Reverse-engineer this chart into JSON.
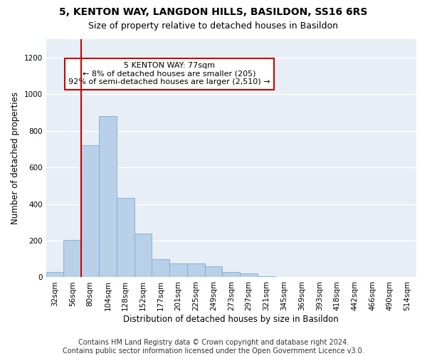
{
  "title_line1": "5, KENTON WAY, LANGDON HILLS, BASILDON, SS16 6RS",
  "title_line2": "Size of property relative to detached houses in Basildon",
  "xlabel": "Distribution of detached houses by size in Basildon",
  "ylabel": "Number of detached properties",
  "footnote": "Contains HM Land Registry data © Crown copyright and database right 2024.\nContains public sector information licensed under the Open Government Licence v3.0.",
  "bar_labels": [
    "32sqm",
    "56sqm",
    "80sqm",
    "104sqm",
    "128sqm",
    "152sqm",
    "177sqm",
    "201sqm",
    "225sqm",
    "249sqm",
    "273sqm",
    "297sqm",
    "321sqm",
    "345sqm",
    "369sqm",
    "393sqm",
    "418sqm",
    "442sqm",
    "466sqm",
    "490sqm",
    "514sqm"
  ],
  "bar_values": [
    30,
    205,
    720,
    880,
    435,
    240,
    100,
    75,
    75,
    60,
    30,
    20,
    5,
    0,
    0,
    0,
    0,
    0,
    0,
    0,
    0
  ],
  "bar_color": "#b8d0e8",
  "bar_edge_color": "#7aaed4",
  "vline_color": "#cc0000",
  "annotation_text": "5 KENTON WAY: 77sqm\n← 8% of detached houses are smaller (205)\n92% of semi-detached houses are larger (2,510) →",
  "annotation_box_color": "#ffffff",
  "annotation_box_edge": "#cc0000",
  "ylim": [
    0,
    1300
  ],
  "yticks": [
    0,
    200,
    400,
    600,
    800,
    1000,
    1200
  ],
  "bg_color": "#e8eef5",
  "grid_color": "#ffffff",
  "title_fontsize": 10,
  "subtitle_fontsize": 9,
  "axis_label_fontsize": 8.5,
  "tick_fontsize": 7.5,
  "annotation_fontsize": 8,
  "footnote_fontsize": 7
}
